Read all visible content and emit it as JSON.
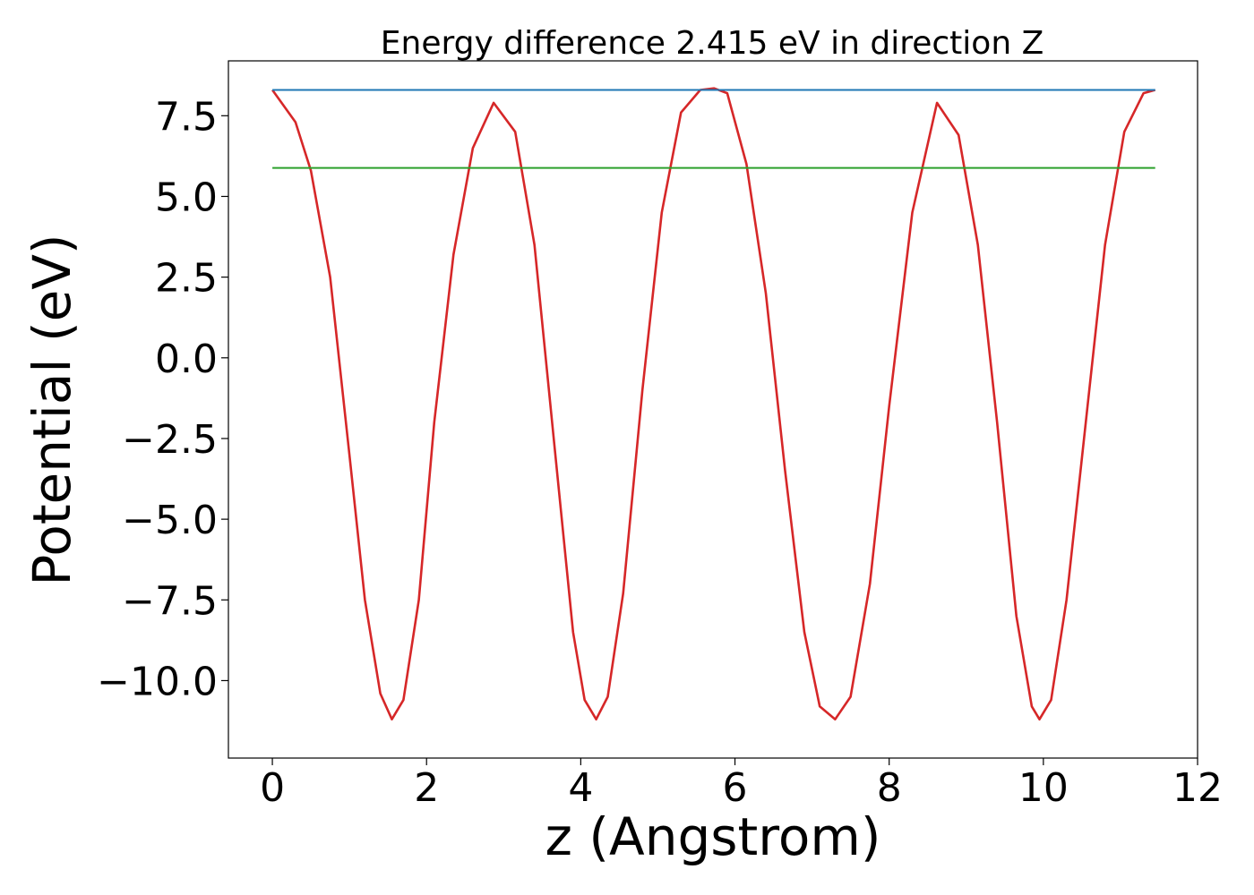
{
  "chart_data": {
    "type": "line",
    "title": "Energy difference 2.415 eV in direction Z",
    "xlabel": "z (Angstrom)",
    "ylabel": "Potential (eV)",
    "xlim": [
      -0.57,
      12
    ],
    "ylim": [
      -12.4,
      9.2
    ],
    "xticks": [
      0,
      2,
      4,
      6,
      8,
      10,
      12
    ],
    "xtick_labels": [
      "0",
      "2",
      "4",
      "6",
      "8",
      "10",
      "12"
    ],
    "yticks": [
      7.5,
      5.0,
      2.5,
      0.0,
      -2.5,
      -5.0,
      -7.5,
      -10.0
    ],
    "ytick_labels": [
      "7.5",
      "5.0",
      "2.5",
      "0.0",
      "−2.5",
      "−5.0",
      "−7.5",
      "−10.0"
    ],
    "grid": false,
    "series": [
      {
        "color": "#d62728",
        "x": [
          0.0,
          0.3,
          0.5,
          0.75,
          1.0,
          1.2,
          1.4,
          1.55,
          1.7,
          1.9,
          2.1,
          2.35,
          2.6,
          2.87,
          3.15,
          3.4,
          3.65,
          3.9,
          4.05,
          4.2,
          4.35,
          4.55,
          4.8,
          5.05,
          5.3,
          5.55,
          5.73,
          5.9,
          6.15,
          6.4,
          6.65,
          6.9,
          7.1,
          7.3,
          7.5,
          7.75,
          8.0,
          8.3,
          8.62,
          8.9,
          9.15,
          9.4,
          9.65,
          9.85,
          9.95,
          10.1,
          10.3,
          10.55,
          10.8,
          11.05,
          11.3,
          11.45
        ],
        "y": [
          8.3,
          7.3,
          5.8,
          2.5,
          -3.0,
          -7.5,
          -10.4,
          -11.2,
          -10.6,
          -7.5,
          -2.0,
          3.2,
          6.5,
          7.9,
          7.0,
          3.5,
          -2.5,
          -8.5,
          -10.6,
          -11.2,
          -10.5,
          -7.3,
          -1.0,
          4.5,
          7.6,
          8.3,
          8.35,
          8.2,
          6.0,
          2.0,
          -3.5,
          -8.5,
          -10.8,
          -11.2,
          -10.5,
          -7.0,
          -1.5,
          4.5,
          7.9,
          6.9,
          3.5,
          -2.0,
          -8.0,
          -10.8,
          -11.2,
          -10.6,
          -7.5,
          -2.0,
          3.5,
          7.0,
          8.2,
          8.3
        ]
      },
      {
        "color": "#1f77b4",
        "x": [
          0.0,
          11.45
        ],
        "y": [
          8.3,
          8.3
        ]
      },
      {
        "color": "#2ca02c",
        "x": [
          0.0,
          11.45
        ],
        "y": [
          5.885,
          5.885
        ]
      }
    ]
  }
}
